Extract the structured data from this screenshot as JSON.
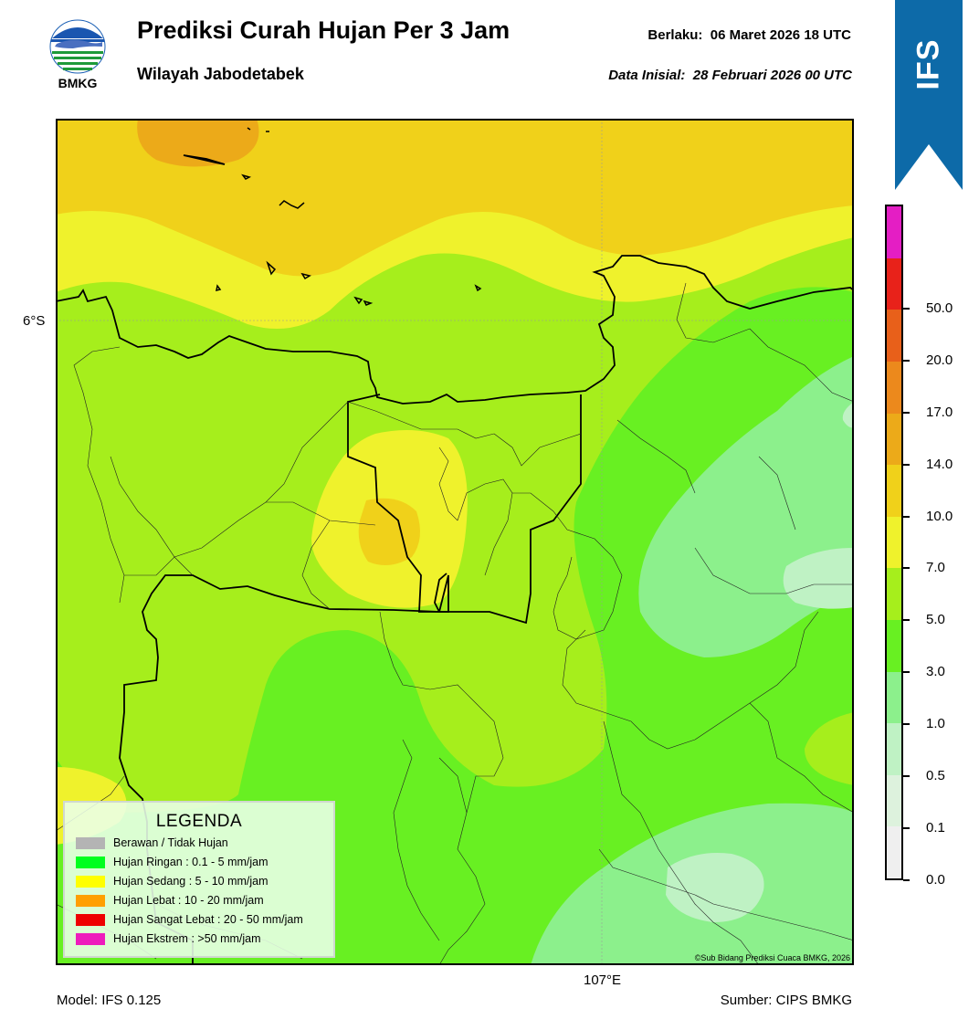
{
  "header": {
    "logo_text": "BMKG",
    "title": "Prediksi Curah Hujan Per 3 Jam",
    "subtitle": "Wilayah Jabodetabek",
    "valid_time": "Berlaku:  06 Maret 2026 18 UTC",
    "initial_time": "Data Inisial:  28 Februari 2026 00 UTC",
    "model_badge": "IFS"
  },
  "map": {
    "lat_label": "6°S",
    "lon_label": "107°E",
    "credit": "©Sub Bidang Prediksi Cuaca BMKG, 2026"
  },
  "legend": {
    "title": "LEGENDA",
    "items": [
      {
        "label": "Berawan / Tidak Hujan",
        "color": "#b4b4b4"
      },
      {
        "label": "Hujan Ringan : 0.1 - 5 mm/jam",
        "color": "#00ff1e"
      },
      {
        "label": "Hujan Sedang : 5 - 10 mm/jam",
        "color": "#ffff00"
      },
      {
        "label": "Hujan Lebat : 10 - 20 mm/jam",
        "color": "#ffa000"
      },
      {
        "label": "Hujan Sangat Lebat : 20 - 50 mm/jam",
        "color": "#ee0000"
      },
      {
        "label": "Hujan Ekstrem : >50 mm/jam",
        "color": "#ee1cbc"
      }
    ]
  },
  "colorbar": {
    "ticks": [
      "0.0",
      "0.1",
      "0.5",
      "1.0",
      "3.0",
      "5.0",
      "7.0",
      "10.0",
      "14.0",
      "17.0",
      "20.0",
      "50.0"
    ],
    "colors": [
      "#efefef",
      "#ddf2dd",
      "#bff2c4",
      "#8cf08c",
      "#68f022",
      "#a6ee1c",
      "#eff22c",
      "#f0d11a",
      "#ecaa19",
      "#ec891c",
      "#e8601a",
      "#e8221a",
      "#e41ec4"
    ]
  },
  "footer": {
    "model": "Model: IFS 0.125",
    "source": "Sumber: CIPS BMKG"
  }
}
